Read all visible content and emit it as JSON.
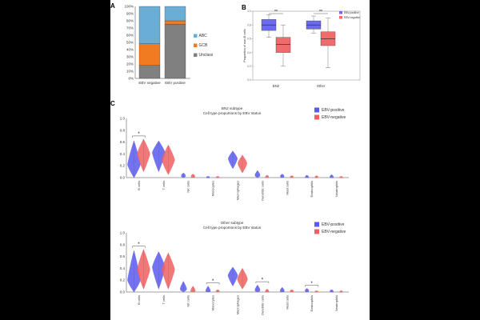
{
  "panels": {
    "a": {
      "letter": "A"
    },
    "b": {
      "letter": "B"
    },
    "c": {
      "letter": "C"
    }
  },
  "chart_data": [
    {
      "id": "A",
      "type": "bar",
      "stacked": true,
      "categories": [
        "EBV negative",
        "EBV positive"
      ],
      "series": [
        {
          "name": "Unclass",
          "color": "#808080",
          "values": [
            18,
            75
          ]
        },
        {
          "name": "GCB",
          "color": "#f07b20",
          "values": [
            30,
            5
          ]
        },
        {
          "name": "ABC",
          "color": "#6aaed6",
          "values": [
            52,
            20
          ]
        }
      ],
      "ylim": [
        0,
        100
      ],
      "yticks": [
        "0%",
        "10%",
        "20%",
        "30%",
        "40%",
        "50%",
        "60%",
        "70%",
        "80%",
        "90%",
        "100%"
      ],
      "legend": [
        "ABC",
        "GCB",
        "Unclass"
      ]
    },
    {
      "id": "B",
      "type": "box",
      "ylabel": "Proportion of non-B cells",
      "categories": [
        "BN2",
        "Other"
      ],
      "series": [
        {
          "name": "EBV-positive",
          "color": "#6b6bf0",
          "boxes": [
            {
              "min": 0.62,
              "q1": 0.72,
              "median": 0.8,
              "q3": 0.88,
              "max": 0.95
            },
            {
              "min": 0.68,
              "q1": 0.74,
              "median": 0.8,
              "q3": 0.86,
              "max": 0.93
            }
          ]
        },
        {
          "name": "EBV-negative",
          "color": "#f06b6b",
          "boxes": [
            {
              "min": 0.2,
              "q1": 0.4,
              "median": 0.52,
              "q3": 0.62,
              "max": 0.8
            },
            {
              "min": 0.18,
              "q1": 0.5,
              "median": 0.6,
              "q3": 0.7,
              "max": 0.9
            }
          ]
        }
      ],
      "ylim": [
        0,
        1
      ],
      "significance": [
        "**",
        "**"
      ],
      "legend": [
        "EBV-positive",
        "EBV-negative"
      ]
    },
    {
      "id": "C1",
      "type": "violin",
      "title": "BN2 subtype",
      "subtitle": "Cell type proportions by EBV status",
      "categories": [
        "B cells",
        "T cells",
        "NK cells",
        "Monocytes",
        "Macrophages",
        "Dendritic cells",
        "Mast cells",
        "Eosinophils",
        "Neutrophils"
      ],
      "series": [
        {
          "name": "EBV-positive",
          "color": "#5a5af0",
          "medians": [
            0.22,
            0.42,
            0.03,
            0.005,
            0.32,
            0.04,
            0.02,
            0.01,
            0.01
          ],
          "ranges": [
            [
              0,
              0.62
            ],
            [
              0.1,
              0.62
            ],
            [
              0,
              0.08
            ],
            [
              0,
              0.02
            ],
            [
              0.15,
              0.45
            ],
            [
              0,
              0.12
            ],
            [
              0,
              0.06
            ],
            [
              0,
              0.04
            ],
            [
              0,
              0.05
            ]
          ]
        },
        {
          "name": "EBV-negative",
          "color": "#f06060",
          "medians": [
            0.4,
            0.3,
            0.02,
            0.005,
            0.24,
            0.01,
            0.01,
            0.01,
            0.005
          ],
          "ranges": [
            [
              0.1,
              0.65
            ],
            [
              0.05,
              0.55
            ],
            [
              0,
              0.06
            ],
            [
              0,
              0.02
            ],
            [
              0.08,
              0.38
            ],
            [
              0,
              0.04
            ],
            [
              0,
              0.03
            ],
            [
              0,
              0.03
            ],
            [
              0,
              0.02
            ]
          ]
        }
      ],
      "ylim": [
        0,
        1
      ],
      "yticks": [
        "0.0",
        "0.2",
        "0.4",
        "0.6",
        "0.8",
        "1.0"
      ],
      "significance": [
        {
          "index": 0,
          "label": "*"
        }
      ],
      "legend": [
        "EBV-positive",
        "EBV-negative"
      ]
    },
    {
      "id": "C2",
      "type": "violin",
      "title": "Other subtype",
      "subtitle": "Cell type proportions by EBV status",
      "categories": [
        "B cells",
        "T cells",
        "NK cells",
        "Monocytes",
        "Macrophages",
        "Dendritic cells",
        "Mast cells",
        "Eosinophils",
        "Neutrophils"
      ],
      "series": [
        {
          "name": "EBV-positive",
          "color": "#5a5af0",
          "medians": [
            0.2,
            0.42,
            0.05,
            0.02,
            0.28,
            0.03,
            0.02,
            0.02,
            0.01
          ],
          "ranges": [
            [
              0,
              0.7
            ],
            [
              0.05,
              0.68
            ],
            [
              0,
              0.18
            ],
            [
              0,
              0.1
            ],
            [
              0.1,
              0.42
            ],
            [
              0,
              0.12
            ],
            [
              0,
              0.08
            ],
            [
              0,
              0.06
            ],
            [
              0,
              0.04
            ]
          ]
        },
        {
          "name": "EBV-negative",
          "color": "#f06060",
          "medians": [
            0.38,
            0.38,
            0.02,
            0.01,
            0.22,
            0.01,
            0.01,
            0.005,
            0.005
          ],
          "ranges": [
            [
              0.05,
              0.72
            ],
            [
              0.05,
              0.66
            ],
            [
              0,
              0.1
            ],
            [
              0,
              0.04
            ],
            [
              0.05,
              0.4
            ],
            [
              0,
              0.05
            ],
            [
              0,
              0.04
            ],
            [
              0,
              0.02
            ],
            [
              0,
              0.02
            ]
          ]
        }
      ],
      "ylim": [
        0,
        1
      ],
      "yticks": [
        "0.0",
        "0.2",
        "0.4",
        "0.6",
        "0.8",
        "1.0"
      ],
      "significance": [
        {
          "index": 0,
          "label": "*"
        },
        {
          "index": 3,
          "label": "*"
        },
        {
          "index": 5,
          "label": "*"
        },
        {
          "index": 7,
          "label": "*"
        }
      ],
      "legend": [
        "EBV-positive",
        "EBV-negative"
      ]
    }
  ]
}
